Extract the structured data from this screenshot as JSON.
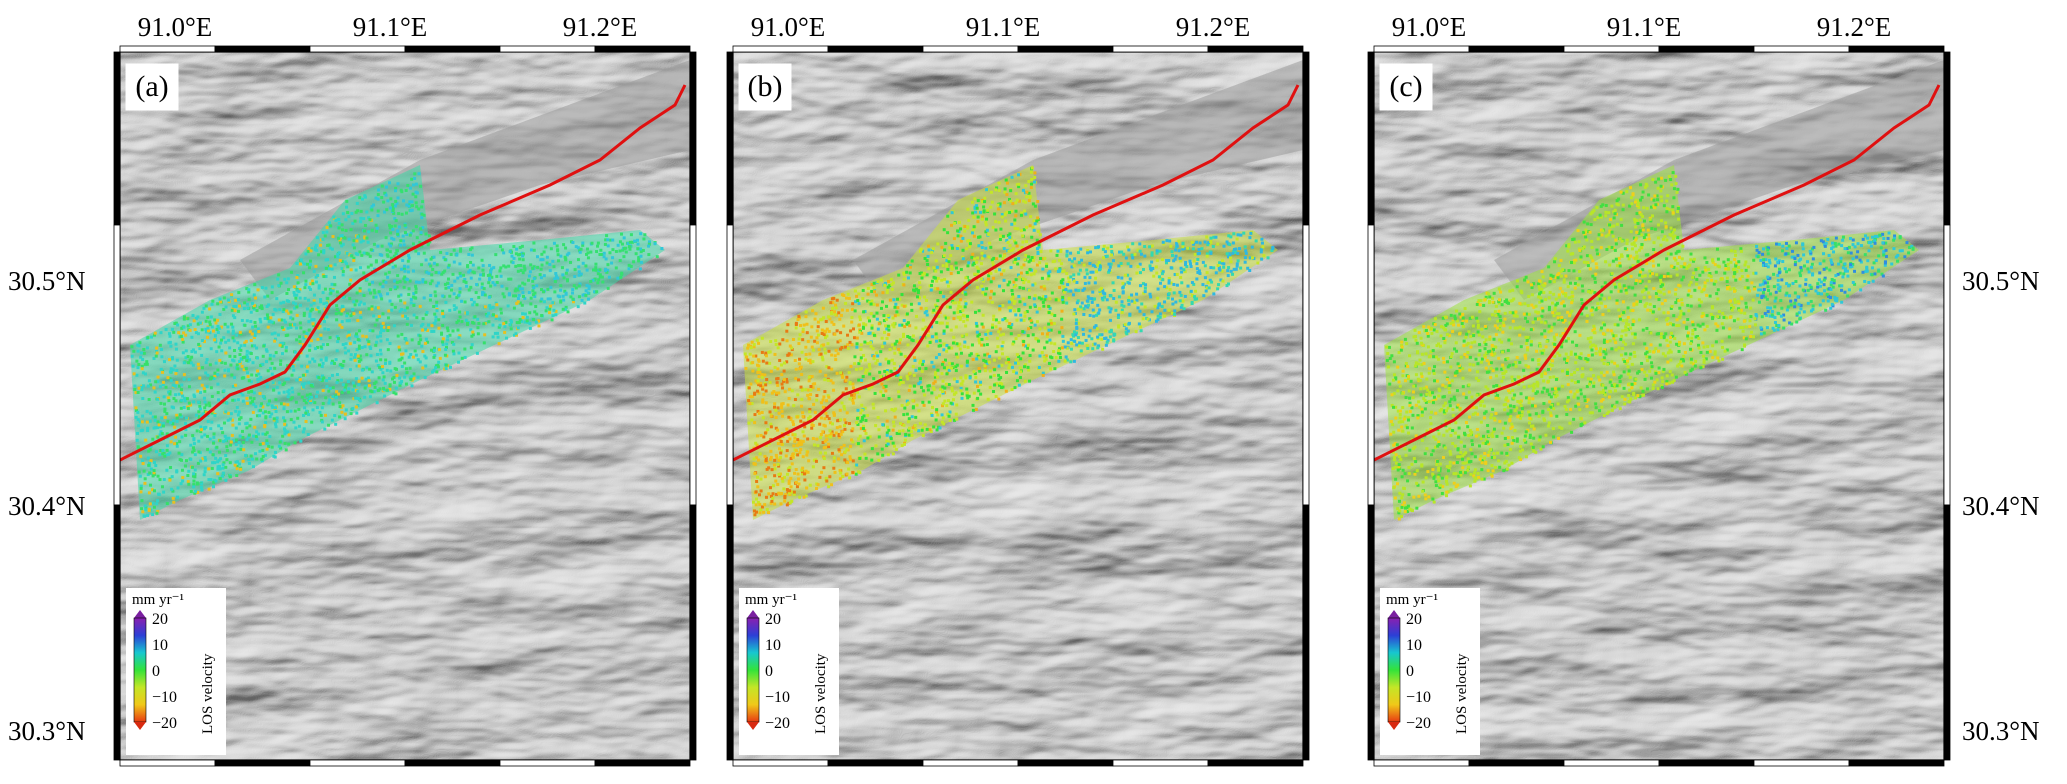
{
  "figure": {
    "lon_ticks": [
      "91.0°E",
      "91.1°E",
      "91.2°E"
    ],
    "lat_ticks": [
      "30.5°N",
      "30.4°N",
      "30.3°N"
    ],
    "lat_tick_values": [
      30.5,
      30.4,
      30.3
    ],
    "lon_tick_values": [
      91.0,
      91.1,
      91.2
    ],
    "colors": {
      "fault": "#e01010",
      "hillshade_base": "#8e8e8e",
      "background": "#ffffff"
    }
  },
  "panels": [
    {
      "id": "a",
      "label": "(a)",
      "dominant_velocity": "cyan-green (~-5 to 5 mm/yr)"
    },
    {
      "id": "b",
      "label": "(b)",
      "dominant_velocity": "yellow-green north, cyan-blue south"
    },
    {
      "id": "c",
      "label": "(c)",
      "dominant_velocity": "green-yellow"
    }
  ],
  "colorbar": {
    "unit": "mm yr⁻¹",
    "title": "LOS velocity",
    "ticks": [
      "20",
      "10",
      "0",
      "−10",
      "−20"
    ],
    "range": [
      -20,
      20
    ],
    "stops": [
      "#8a1fb0",
      "#2c3fd6",
      "#17c7d0",
      "#33e33a",
      "#c4e627",
      "#f0c819",
      "#e83a12"
    ]
  }
}
